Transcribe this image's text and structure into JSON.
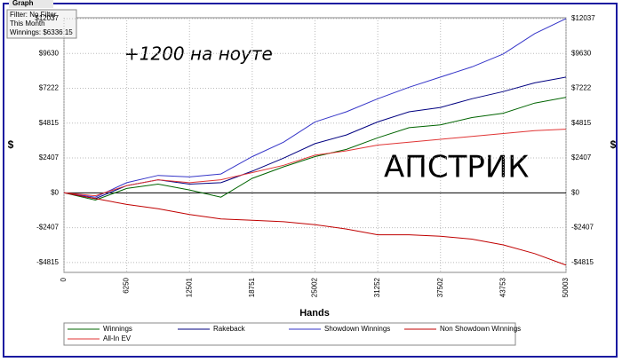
{
  "tab": "Graph",
  "filter": [
    "Filter: No Filter",
    "This Month",
    "Winnings: $6336.15"
  ],
  "annotations": [
    "+1200 на ноуте",
    "АПСТРИК"
  ],
  "chart_data": {
    "type": "line",
    "xlabel": "Hands",
    "ylabel": "$",
    "x": [
      0,
      3125,
      6250,
      9375,
      12501,
      15626,
      18751,
      21876,
      25002,
      28127,
      31252,
      34377,
      37502,
      40628,
      43753,
      46878,
      50003
    ],
    "xlim": [
      0,
      50003
    ],
    "xticks": [
      0,
      6250,
      12501,
      18751,
      25002,
      31252,
      37502,
      43753,
      50003
    ],
    "ylim": [
      -5500,
      12100
    ],
    "yticks": [
      {
        "value": -4815,
        "label": "-$4815"
      },
      {
        "value": -2407,
        "label": "-$2407"
      },
      {
        "value": 0,
        "label": "$0"
      },
      {
        "value": 2407,
        "label": "$2407"
      },
      {
        "value": 4815,
        "label": "$4815"
      },
      {
        "value": 7222,
        "label": "$7222"
      },
      {
        "value": 9630,
        "label": "$9630"
      },
      {
        "value": 12037,
        "label": "$12037"
      }
    ],
    "grid": true,
    "series": [
      {
        "name": "Winnings",
        "color": "#006400",
        "values": [
          0,
          -500,
          300,
          600,
          200,
          -300,
          1000,
          1800,
          2500,
          3000,
          3800,
          4500,
          4700,
          5200,
          5500,
          6200,
          6600
        ]
      },
      {
        "name": "Rakeback",
        "color": "#000080",
        "values": [
          0,
          -400,
          500,
          900,
          600,
          700,
          1500,
          2400,
          3400,
          4000,
          4900,
          5600,
          5900,
          6500,
          7000,
          7600,
          8000
        ]
      },
      {
        "name": "Showdown Winnings",
        "color": "#3535c8",
        "values": [
          0,
          -300,
          700,
          1200,
          1100,
          1300,
          2500,
          3500,
          4900,
          5600,
          6500,
          7300,
          8000,
          8700,
          9600,
          11000,
          12037
        ]
      },
      {
        "name": "Non Showdown Winnings",
        "color": "#c00000",
        "values": [
          0,
          -400,
          -800,
          -1100,
          -1500,
          -1800,
          -1900,
          -2000,
          -2200,
          -2500,
          -2900,
          -2900,
          -3000,
          -3200,
          -3600,
          -4200,
          -5000
        ]
      },
      {
        "name": "All-In EV",
        "color": "#e03535",
        "values": [
          0,
          -200,
          500,
          900,
          700,
          900,
          1400,
          1900,
          2600,
          2900,
          3300,
          3500,
          3700,
          3900,
          4100,
          4300,
          4400
        ]
      }
    ]
  }
}
